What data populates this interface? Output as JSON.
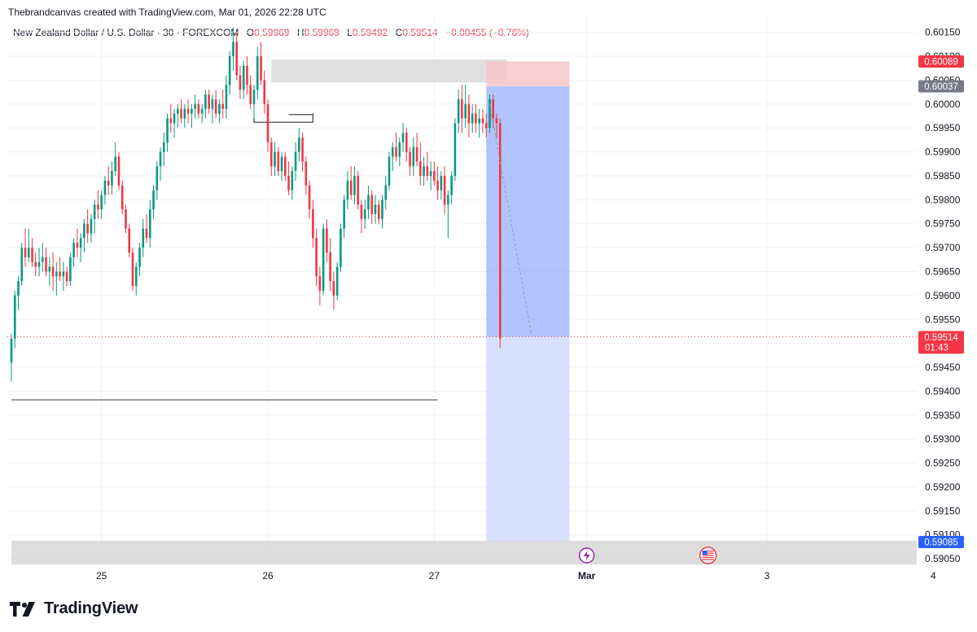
{
  "header": {
    "attribution": "Thebrandcanvas created with TradingView.com, Mar 01, 2026 22:28 UTC",
    "symbol": "New Zealand Dollar / U.S. Dollar · 30 · FOREXCOM",
    "open_label": "O",
    "open": "0.59969",
    "high_label": "H",
    "high": "0.59969",
    "low_label": "L",
    "low": "0.59492",
    "close_label": "C",
    "close": "0.59514",
    "change": "−0.00455 (−0.76%)"
  },
  "brand": {
    "name": "TradingView"
  },
  "colors": {
    "up": "#089981",
    "down": "#f23645",
    "grid": "#f0f3fa",
    "target_zone": "#7f9dfb",
    "target_zone_light": "#c9d7fc",
    "stop_zone": "#f8c6c9",
    "supply_zone": "#d9d9d9",
    "price_tag": "#f23645",
    "stop_tag": "#f23645",
    "entry_tag": "#787b86",
    "target_tag": "#2962ff"
  },
  "chart_data": {
    "type": "candlestick",
    "interval": "30",
    "y_axis": {
      "min": 0.5904,
      "max": 0.6018,
      "ticks": [
        "0.60150",
        "0.60100",
        "0.60050",
        "0.60000",
        "0.59950",
        "0.59900",
        "0.59850",
        "0.59800",
        "0.59750",
        "0.59700",
        "0.59650",
        "0.59600",
        "0.59550",
        "0.59500",
        "0.59450",
        "0.59400",
        "0.59350",
        "0.59300",
        "0.59250",
        "0.59200",
        "0.59150",
        "0.59100",
        "0.59050"
      ]
    },
    "x_axis": {
      "ticks": [
        {
          "label": "25",
          "bar": 26
        },
        {
          "label": "26",
          "bar": 74
        },
        {
          "label": "27",
          "bar": 122
        },
        {
          "label": "Mar",
          "bar": 166
        },
        {
          "label": "3",
          "bar": 218
        },
        {
          "label": "4",
          "bar": 266
        }
      ]
    },
    "candles": [
      [
        0.5946,
        0.5952,
        0.5942,
        0.5951
      ],
      [
        0.5951,
        0.5961,
        0.5949,
        0.596
      ],
      [
        0.596,
        0.5964,
        0.5957,
        0.5963
      ],
      [
        0.5963,
        0.5971,
        0.5962,
        0.597
      ],
      [
        0.597,
        0.5974,
        0.5966,
        0.5968
      ],
      [
        0.5968,
        0.5974,
        0.5967,
        0.597
      ],
      [
        0.597,
        0.5972,
        0.5966,
        0.5967
      ],
      [
        0.5967,
        0.5969,
        0.5964,
        0.5966
      ],
      [
        0.5966,
        0.597,
        0.5964,
        0.5967
      ],
      [
        0.5967,
        0.5971,
        0.5965,
        0.5968
      ],
      [
        0.5968,
        0.597,
        0.5964,
        0.5965
      ],
      [
        0.5965,
        0.5968,
        0.5962,
        0.5966
      ],
      [
        0.5966,
        0.5969,
        0.5961,
        0.5964
      ],
      [
        0.5964,
        0.5967,
        0.596,
        0.5965
      ],
      [
        0.5965,
        0.5968,
        0.5963,
        0.5964
      ],
      [
        0.5964,
        0.5967,
        0.5961,
        0.5965
      ],
      [
        0.5965,
        0.5966,
        0.5962,
        0.5963
      ],
      [
        0.5963,
        0.5969,
        0.5962,
        0.5968
      ],
      [
        0.5968,
        0.5972,
        0.5966,
        0.5971
      ],
      [
        0.5971,
        0.5974,
        0.5968,
        0.597
      ],
      [
        0.597,
        0.5973,
        0.5967,
        0.5972
      ],
      [
        0.5972,
        0.5976,
        0.5969,
        0.5975
      ],
      [
        0.5975,
        0.5978,
        0.5971,
        0.5973
      ],
      [
        0.5973,
        0.5977,
        0.5971,
        0.5976
      ],
      [
        0.5976,
        0.598,
        0.5973,
        0.5979
      ],
      [
        0.5979,
        0.5982,
        0.5976,
        0.5978
      ],
      [
        0.5978,
        0.5982,
        0.5976,
        0.5981
      ],
      [
        0.5981,
        0.5985,
        0.5979,
        0.5984
      ],
      [
        0.5984,
        0.5987,
        0.5981,
        0.5983
      ],
      [
        0.5983,
        0.5988,
        0.5981,
        0.5986
      ],
      [
        0.5986,
        0.5992,
        0.5985,
        0.5989
      ],
      [
        0.5989,
        0.599,
        0.5982,
        0.5983
      ],
      [
        0.5983,
        0.5984,
        0.5977,
        0.5978
      ],
      [
        0.5978,
        0.5979,
        0.5973,
        0.5974
      ],
      [
        0.5974,
        0.5975,
        0.5968,
        0.5969
      ],
      [
        0.5969,
        0.597,
        0.5961,
        0.5962
      ],
      [
        0.5962,
        0.5967,
        0.596,
        0.5966
      ],
      [
        0.5966,
        0.5971,
        0.5964,
        0.597
      ],
      [
        0.597,
        0.5976,
        0.5968,
        0.5974
      ],
      [
        0.5974,
        0.5977,
        0.5971,
        0.5972
      ],
      [
        0.5972,
        0.598,
        0.597,
        0.5978
      ],
      [
        0.5978,
        0.5983,
        0.5976,
        0.5982
      ],
      [
        0.5982,
        0.5988,
        0.598,
        0.5987
      ],
      [
        0.5987,
        0.5991,
        0.5984,
        0.599
      ],
      [
        0.599,
        0.5994,
        0.5987,
        0.5992
      ],
      [
        0.5992,
        0.5998,
        0.599,
        0.5997
      ],
      [
        0.5997,
        0.6,
        0.5994,
        0.5996
      ],
      [
        0.5996,
        0.5999,
        0.5993,
        0.5998
      ],
      [
        0.5998,
        0.6,
        0.5995,
        0.5999
      ],
      [
        0.5999,
        0.6001,
        0.5996,
        0.5997
      ],
      [
        0.5997,
        0.6,
        0.5995,
        0.5999
      ],
      [
        0.5999,
        0.6001,
        0.5996,
        0.5998
      ],
      [
        0.5998,
        0.6,
        0.5995,
        0.5999
      ],
      [
        0.5999,
        0.6002,
        0.5997,
        0.6
      ],
      [
        0.6,
        0.6001,
        0.5997,
        0.5998
      ],
      [
        0.5998,
        0.6,
        0.5996,
        0.5999
      ],
      [
        0.5999,
        0.6003,
        0.5997,
        0.6002
      ],
      [
        0.6002,
        0.6003,
        0.5998,
        0.5999
      ],
      [
        0.5999,
        0.6002,
        0.5996,
        0.6001
      ],
      [
        0.6001,
        0.6003,
        0.5997,
        0.5998
      ],
      [
        0.5998,
        0.6001,
        0.5996,
        0.6
      ],
      [
        0.6,
        0.6003,
        0.5997,
        0.5999
      ],
      [
        0.5999,
        0.6006,
        0.5997,
        0.6004
      ],
      [
        0.6004,
        0.6011,
        0.6002,
        0.601
      ],
      [
        0.601,
        0.6016,
        0.6007,
        0.6013
      ],
      [
        0.6013,
        0.6015,
        0.6005,
        0.6006
      ],
      [
        0.6006,
        0.6008,
        0.6001,
        0.6003
      ],
      [
        0.6003,
        0.6009,
        0.6001,
        0.6008
      ],
      [
        0.6008,
        0.601,
        0.6002,
        0.6004
      ],
      [
        0.6004,
        0.6006,
        0.5999,
        0.6
      ],
      [
        0.6,
        0.6004,
        0.5997,
        0.6003
      ],
      [
        0.6003,
        0.6012,
        0.6001,
        0.601
      ],
      [
        0.601,
        0.6013,
        0.6004,
        0.6005
      ],
      [
        0.6005,
        0.6007,
        0.5998,
        0.6
      ],
      [
        0.6,
        0.6001,
        0.599,
        0.5992
      ],
      [
        0.5992,
        0.5993,
        0.5985,
        0.5987
      ],
      [
        0.5987,
        0.5992,
        0.5985,
        0.599
      ],
      [
        0.599,
        0.5991,
        0.5985,
        0.5986
      ],
      [
        0.5986,
        0.599,
        0.5984,
        0.5989
      ],
      [
        0.5989,
        0.599,
        0.5984,
        0.5985
      ],
      [
        0.5985,
        0.5988,
        0.5981,
        0.5982
      ],
      [
        0.5982,
        0.5987,
        0.598,
        0.5986
      ],
      [
        0.5986,
        0.5992,
        0.5984,
        0.599
      ],
      [
        0.599,
        0.5995,
        0.5988,
        0.5993
      ],
      [
        0.5993,
        0.5994,
        0.5986,
        0.5988
      ],
      [
        0.5988,
        0.5989,
        0.5981,
        0.5983
      ],
      [
        0.5983,
        0.5984,
        0.5976,
        0.5978
      ],
      [
        0.5978,
        0.598,
        0.597,
        0.5972
      ],
      [
        0.5972,
        0.5974,
        0.5962,
        0.5964
      ],
      [
        0.5964,
        0.5966,
        0.5958,
        0.5961
      ],
      [
        0.5961,
        0.5975,
        0.596,
        0.5974
      ],
      [
        0.5974,
        0.5976,
        0.5967,
        0.5969
      ],
      [
        0.5969,
        0.5972,
        0.5961,
        0.5963
      ],
      [
        0.5963,
        0.5965,
        0.5957,
        0.596
      ],
      [
        0.596,
        0.5967,
        0.5959,
        0.5966
      ],
      [
        0.5966,
        0.5975,
        0.5965,
        0.5974
      ],
      [
        0.5974,
        0.5981,
        0.5972,
        0.598
      ],
      [
        0.598,
        0.5986,
        0.5978,
        0.5984
      ],
      [
        0.5984,
        0.5987,
        0.598,
        0.5981
      ],
      [
        0.5981,
        0.5987,
        0.5979,
        0.5985
      ],
      [
        0.5985,
        0.5986,
        0.5978,
        0.5979
      ],
      [
        0.5979,
        0.598,
        0.5973,
        0.5976
      ],
      [
        0.5976,
        0.598,
        0.5974,
        0.5978
      ],
      [
        0.5978,
        0.5983,
        0.5976,
        0.5981
      ],
      [
        0.5981,
        0.5982,
        0.5975,
        0.5977
      ],
      [
        0.5977,
        0.5981,
        0.5975,
        0.5979
      ],
      [
        0.5979,
        0.598,
        0.5975,
        0.5976
      ],
      [
        0.5976,
        0.5981,
        0.5974,
        0.598
      ],
      [
        0.598,
        0.5985,
        0.5978,
        0.5983
      ],
      [
        0.5983,
        0.599,
        0.5982,
        0.5989
      ],
      [
        0.5989,
        0.5992,
        0.5986,
        0.5991
      ],
      [
        0.5991,
        0.5994,
        0.5988,
        0.5989
      ],
      [
        0.5989,
        0.5993,
        0.5987,
        0.5992
      ],
      [
        0.5992,
        0.5996,
        0.599,
        0.5994
      ],
      [
        0.5994,
        0.5995,
        0.5988,
        0.599
      ],
      [
        0.599,
        0.5991,
        0.5985,
        0.5987
      ],
      [
        0.5987,
        0.5993,
        0.5985,
        0.5991
      ],
      [
        0.5991,
        0.5994,
        0.5987,
        0.5988
      ],
      [
        0.5988,
        0.5992,
        0.5983,
        0.5985
      ],
      [
        0.5985,
        0.5989,
        0.5983,
        0.5987
      ],
      [
        0.5987,
        0.599,
        0.5984,
        0.5985
      ],
      [
        0.5985,
        0.5988,
        0.5982,
        0.5986
      ],
      [
        0.5986,
        0.5988,
        0.5983,
        0.5984
      ],
      [
        0.5984,
        0.5987,
        0.598,
        0.5982
      ],
      [
        0.5982,
        0.5986,
        0.598,
        0.5985
      ],
      [
        0.5985,
        0.5987,
        0.5977,
        0.5979
      ],
      [
        0.5979,
        0.5982,
        0.5972,
        0.5981
      ],
      [
        0.5981,
        0.5986,
        0.5979,
        0.5985
      ],
      [
        0.5985,
        0.5997,
        0.5984,
        0.5996
      ],
      [
        0.5996,
        0.6003,
        0.5994,
        0.6001
      ],
      [
        0.6001,
        0.6004,
        0.5994,
        0.5997
      ],
      [
        0.5997,
        0.6004,
        0.5995,
        0.6
      ],
      [
        0.6,
        0.6002,
        0.5993,
        0.5996
      ],
      [
        0.5996,
        0.6,
        0.5994,
        0.5998
      ],
      [
        0.5998,
        0.6,
        0.5994,
        0.5996
      ],
      [
        0.5996,
        0.5999,
        0.5993,
        0.5997
      ],
      [
        0.5997,
        0.5999,
        0.5994,
        0.5996
      ],
      [
        0.5996,
        0.5998,
        0.5993,
        0.5995
      ],
      [
        0.5995,
        0.6002,
        0.5994,
        0.6001
      ],
      [
        0.6001,
        0.6002,
        0.5995,
        0.5997
      ],
      [
        0.5997,
        0.5998,
        0.5993,
        0.5996
      ],
      [
        0.5996,
        0.5997,
        0.5949,
        0.5951
      ]
    ],
    "zones": [
      {
        "kind": "supply",
        "from_bar": 75,
        "to_bar": 143,
        "top": 0.60093,
        "bottom": 0.60045
      },
      {
        "kind": "stop",
        "from_bar": 137,
        "to_bar": 161,
        "top": 0.60089,
        "bottom": 0.60037
      },
      {
        "kind": "target",
        "from_bar": 137,
        "to_bar": 161,
        "top": 0.60037,
        "bottom": 0.59514
      },
      {
        "kind": "target-extended",
        "from_bar": 137,
        "to_bar": 161,
        "top": 0.59514,
        "bottom": 0.59085
      },
      {
        "kind": "lower-band",
        "from_bar": 0,
        "to_bar": 270,
        "top": 0.59088,
        "bottom": 0.59038
      }
    ],
    "levels": [
      {
        "kind": "horizontal-line",
        "from_bar": 0,
        "to_bar": 123,
        "price": 0.59382
      }
    ],
    "bracket": {
      "from_bar": 70,
      "to_bar": 87,
      "top": 0.5998,
      "bottom": 0.59962,
      "mid_from_bar": 80,
      "mid_price": 0.59978
    },
    "projection": {
      "from_bar": 138,
      "from_price": 0.6,
      "to_bar": 150,
      "to_price": 0.5952
    },
    "price_tags": [
      {
        "label": "0.60089",
        "price": 0.60089,
        "kind": "stop"
      },
      {
        "label": "0.60037",
        "price": 0.60037,
        "kind": "entry"
      },
      {
        "label": "0.59514",
        "sub": "01:43",
        "price": 0.59514,
        "kind": "last"
      },
      {
        "label": "0.59085",
        "price": 0.59085,
        "kind": "target"
      }
    ],
    "events": [
      {
        "kind": "lightning-icon",
        "bar": 166
      },
      {
        "kind": "us-flag-icon",
        "bar": 201
      }
    ]
  }
}
